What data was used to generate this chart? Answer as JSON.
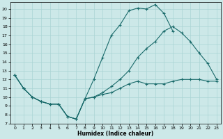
{
  "xlabel": "Humidex (Indice chaleur)",
  "bg_color": "#cce8e8",
  "grid_color": "#aad4d4",
  "line_color": "#1a6b6b",
  "xlim": [
    -0.5,
    23.5
  ],
  "ylim": [
    7,
    20.8
  ],
  "yticks": [
    7,
    8,
    9,
    10,
    11,
    12,
    13,
    14,
    15,
    16,
    17,
    18,
    19,
    20
  ],
  "xticks": [
    0,
    1,
    2,
    3,
    4,
    5,
    6,
    7,
    8,
    9,
    10,
    11,
    12,
    13,
    14,
    15,
    16,
    17,
    18,
    19,
    20,
    21,
    22,
    23
  ],
  "curve1_x": [
    0,
    1,
    2,
    3,
    4,
    5,
    6,
    7,
    8,
    9,
    10,
    11,
    12,
    13,
    14,
    15,
    16,
    17,
    18
  ],
  "curve1_y": [
    12.5,
    11.0,
    10.0,
    9.5,
    9.2,
    9.2,
    7.8,
    7.5,
    9.8,
    12.0,
    14.5,
    17.0,
    18.2,
    19.8,
    20.1,
    20.0,
    20.5,
    19.5,
    17.5
  ],
  "curve2_x": [
    0,
    1,
    2,
    3,
    4,
    5,
    6,
    7,
    8,
    9,
    10,
    11,
    12,
    13,
    14,
    15,
    16,
    17,
    18,
    19,
    20,
    21,
    22,
    23
  ],
  "curve2_y": [
    12.5,
    11.0,
    10.0,
    9.5,
    9.2,
    9.2,
    7.8,
    7.5,
    9.8,
    10.0,
    10.3,
    10.5,
    11.0,
    11.5,
    11.8,
    11.5,
    11.5,
    11.5,
    11.8,
    12.0,
    12.0,
    12.0,
    11.8,
    11.8
  ],
  "curve3_x": [
    0,
    1,
    2,
    3,
    4,
    5,
    6,
    7,
    8,
    9,
    10,
    11,
    12,
    13,
    14,
    15,
    16,
    17,
    18,
    19,
    20,
    21,
    22,
    23
  ],
  "curve3_y": [
    12.5,
    11.0,
    10.0,
    9.5,
    9.2,
    9.2,
    7.8,
    7.5,
    9.8,
    10.0,
    10.5,
    11.2,
    12.0,
    13.0,
    14.5,
    15.5,
    16.3,
    17.5,
    18.0,
    17.3,
    16.3,
    15.0,
    13.8,
    12.0
  ]
}
